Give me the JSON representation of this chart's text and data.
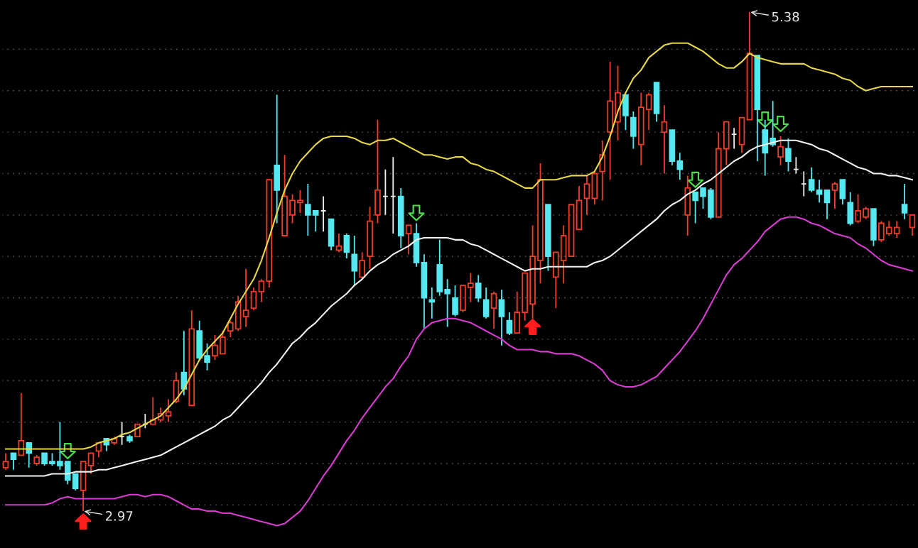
{
  "chart_data": {
    "type": "candlestick",
    "categories": [
      null,
      null,
      null,
      null,
      null,
      null,
      null,
      null,
      null,
      null,
      null,
      null,
      null,
      null,
      null,
      null,
      null,
      null,
      null,
      null,
      null,
      null,
      null,
      null,
      null,
      null,
      null,
      null,
      null,
      null,
      null,
      null,
      null,
      null,
      null,
      null,
      null,
      null,
      null,
      null,
      null,
      null,
      null,
      null,
      null,
      null,
      null,
      null,
      null,
      null,
      null,
      null,
      null,
      null,
      null,
      null,
      null,
      null,
      null,
      null,
      null,
      null,
      null,
      null,
      null,
      null,
      null,
      null,
      null,
      null,
      null,
      null,
      null,
      null,
      null,
      null,
      null,
      null,
      null,
      null,
      null,
      null,
      null,
      null,
      null,
      null,
      null,
      null,
      null,
      null,
      null,
      null,
      null,
      null,
      null,
      null,
      null,
      null,
      null,
      null,
      null,
      null,
      null,
      null,
      null,
      null,
      null,
      null,
      null,
      null,
      null,
      null,
      null,
      null,
      null,
      null,
      null,
      null
    ],
    "ohlc": [
      [
        3.18,
        3.25,
        3.17,
        3.21
      ],
      [
        3.25,
        3.25,
        3.17,
        3.22
      ],
      [
        3.24,
        3.54,
        3.24,
        3.31
      ],
      [
        3.3,
        3.3,
        3.18,
        3.25
      ],
      [
        3.2,
        3.24,
        3.19,
        3.23
      ],
      [
        3.25,
        3.25,
        3.19,
        3.2
      ],
      [
        3.21,
        3.25,
        3.19,
        3.2
      ],
      [
        3.21,
        3.4,
        3.17,
        3.19
      ],
      [
        3.21,
        3.21,
        3.1,
        3.12
      ],
      [
        3.15,
        3.15,
        3.07,
        3.08
      ],
      [
        3.07,
        3.21,
        2.97,
        3.21
      ],
      [
        3.19,
        3.25,
        3.15,
        3.25
      ],
      [
        3.26,
        3.3,
        3.23,
        3.3
      ],
      [
        3.32,
        3.32,
        3.26,
        3.29
      ],
      [
        3.3,
        3.33,
        3.29,
        3.32
      ],
      [
        3.33,
        3.4,
        3.29,
        3.33
      ],
      [
        3.33,
        3.34,
        3.3,
        3.31
      ],
      [
        3.33,
        3.39,
        3.33,
        3.39
      ],
      [
        3.39,
        3.44,
        3.37,
        3.39
      ],
      [
        3.39,
        3.52,
        3.39,
        3.41
      ],
      [
        3.41,
        3.47,
        3.4,
        3.44
      ],
      [
        3.43,
        3.51,
        3.4,
        3.45
      ],
      [
        3.5,
        3.64,
        3.49,
        3.6
      ],
      [
        3.64,
        3.84,
        3.53,
        3.56
      ],
      [
        3.48,
        3.94,
        3.48,
        3.85
      ],
      [
        3.84,
        3.89,
        3.7,
        3.71
      ],
      [
        3.72,
        3.78,
        3.65,
        3.69
      ],
      [
        3.72,
        3.82,
        3.7,
        3.77
      ],
      [
        3.73,
        3.84,
        3.73,
        3.81
      ],
      [
        3.84,
        3.89,
        3.81,
        3.88
      ],
      [
        3.85,
        4.01,
        3.84,
        3.98
      ],
      [
        3.91,
        4.14,
        3.86,
        3.94
      ],
      [
        3.95,
        4.05,
        3.94,
        4.03
      ],
      [
        4.03,
        4.09,
        3.98,
        4.08
      ],
      [
        4.08,
        4.57,
        4.05,
        4.57
      ],
      [
        4.64,
        4.98,
        4.36,
        4.52
      ],
      [
        4.3,
        4.69,
        4.3,
        4.49
      ],
      [
        4.4,
        4.5,
        4.36,
        4.47
      ],
      [
        4.46,
        4.52,
        4.41,
        4.47
      ],
      [
        4.45,
        4.55,
        4.3,
        4.4
      ],
      [
        4.42,
        4.42,
        4.32,
        4.4
      ],
      [
        4.42,
        4.49,
        4.32,
        4.42
      ],
      [
        4.38,
        4.38,
        4.23,
        4.25
      ],
      [
        4.23,
        4.31,
        4.22,
        4.25
      ],
      [
        4.3,
        4.31,
        4.19,
        4.22
      ],
      [
        4.21,
        4.3,
        4.06,
        4.13
      ],
      [
        4.1,
        4.22,
        4.09,
        4.18
      ],
      [
        4.2,
        4.44,
        4.14,
        4.37
      ],
      [
        4.4,
        4.86,
        4.36,
        4.52
      ],
      [
        4.49,
        4.62,
        4.4,
        4.49
      ],
      [
        4.49,
        4.68,
        4.31,
        4.49
      ],
      [
        4.49,
        4.53,
        4.24,
        4.3
      ],
      [
        4.31,
        4.35,
        4.21,
        4.35
      ],
      [
        4.31,
        4.36,
        4.15,
        4.17
      ],
      [
        4.17,
        4.21,
        3.85,
        4.0
      ],
      [
        3.99,
        4.05,
        3.9,
        3.98
      ],
      [
        4.16,
        4.28,
        4.01,
        4.03
      ],
      [
        4.04,
        4.09,
        3.86,
        4.02
      ],
      [
        4.0,
        4.06,
        3.91,
        3.92
      ],
      [
        3.94,
        4.06,
        3.93,
        4.06
      ],
      [
        4.05,
        4.12,
        3.98,
        4.07
      ],
      [
        4.07,
        4.11,
        3.98,
        4.0
      ],
      [
        3.99,
        4.05,
        3.9,
        3.91
      ],
      [
        3.95,
        4.03,
        3.85,
        4.02
      ],
      [
        3.99,
        4.04,
        3.77,
        3.91
      ],
      [
        3.89,
        3.93,
        3.82,
        3.83
      ],
      [
        3.83,
        4.03,
        3.83,
        3.93
      ],
      [
        3.93,
        4.12,
        3.89,
        4.12
      ],
      [
        3.97,
        4.35,
        3.9,
        4.2
      ],
      [
        4.18,
        4.65,
        4.07,
        4.57
      ],
      [
        4.45,
        4.45,
        4.13,
        4.2
      ],
      [
        4.1,
        4.22,
        3.95,
        4.22
      ],
      [
        4.18,
        4.35,
        4.07,
        4.3
      ],
      [
        4.2,
        4.45,
        4.2,
        4.45
      ],
      [
        4.33,
        4.54,
        4.33,
        4.47
      ],
      [
        4.48,
        4.59,
        4.4,
        4.55
      ],
      [
        4.48,
        4.61,
        4.45,
        4.6
      ],
      [
        4.61,
        4.76,
        4.47,
        4.69
      ],
      [
        4.8,
        5.14,
        4.57,
        4.95
      ],
      [
        4.85,
        5.12,
        4.76,
        4.99
      ],
      [
        4.98,
        4.98,
        4.81,
        4.88
      ],
      [
        4.87,
        4.9,
        4.72,
        4.78
      ],
      [
        4.74,
        4.99,
        4.64,
        4.92
      ],
      [
        4.91,
        4.99,
        4.81,
        4.98
      ],
      [
        5.04,
        5.04,
        4.85,
        4.89
      ],
      [
        4.8,
        4.93,
        4.6,
        4.85
      ],
      [
        4.81,
        4.81,
        4.64,
        4.66
      ],
      [
        4.66,
        4.7,
        4.57,
        4.62
      ],
      [
        4.4,
        4.59,
        4.3,
        4.53
      ],
      [
        4.51,
        4.51,
        4.36,
        4.47
      ],
      [
        4.53,
        4.53,
        4.43,
        4.49
      ],
      [
        4.52,
        4.53,
        4.38,
        4.39
      ],
      [
        4.39,
        4.8,
        4.39,
        4.72
      ],
      [
        4.72,
        4.85,
        4.64,
        4.85
      ],
      [
        4.79,
        4.82,
        4.72,
        4.79
      ],
      [
        4.74,
        4.87,
        4.7,
        4.87
      ],
      [
        4.86,
        5.38,
        4.86,
        5.18
      ],
      [
        5.17,
        5.17,
        4.66,
        4.91
      ],
      [
        4.81,
        4.86,
        4.59,
        4.7
      ],
      [
        4.77,
        4.95,
        4.73,
        4.74
      ],
      [
        4.68,
        4.78,
        4.64,
        4.73
      ],
      [
        4.72,
        4.77,
        4.61,
        4.66
      ],
      [
        4.62,
        4.68,
        4.6,
        4.62
      ],
      [
        4.55,
        4.61,
        4.49,
        4.55
      ],
      [
        4.57,
        4.63,
        4.51,
        4.52
      ],
      [
        4.52,
        4.57,
        4.46,
        4.5
      ],
      [
        4.52,
        4.52,
        4.38,
        4.46
      ],
      [
        4.52,
        4.56,
        4.43,
        4.55
      ],
      [
        4.57,
        4.57,
        4.45,
        4.48
      ],
      [
        4.46,
        4.51,
        4.35,
        4.36
      ],
      [
        4.37,
        4.5,
        4.36,
        4.42
      ],
      [
        4.39,
        4.44,
        4.38,
        4.43
      ],
      [
        4.43,
        4.43,
        4.25,
        4.28
      ],
      [
        4.28,
        4.37,
        4.27,
        4.36
      ],
      [
        4.31,
        4.37,
        4.3,
        4.34
      ],
      [
        4.31,
        4.37,
        4.29,
        4.34
      ],
      [
        4.45,
        4.55,
        4.38,
        4.41
      ],
      [
        4.34,
        4.4,
        4.3,
        4.4
      ]
    ],
    "colors": [
      "#f23c28",
      "#55e8f0",
      "#f23c28",
      "#55e8f0",
      "#f23c28",
      "#55e8f0",
      "#55e8f0",
      "#55e8f0",
      "#55e8f0",
      "#55e8f0",
      "#f23c28",
      "#f23c28",
      "#f23c28",
      "#55e8f0",
      "#f23c28",
      "#f0f0f0",
      "#55e8f0",
      "#f23c28",
      "#f0f0f0",
      "#f23c28",
      "#f23c28",
      "#f23c28",
      "#f23c28",
      "#55e8f0",
      "#f23c28",
      "#55e8f0",
      "#55e8f0",
      "#f23c28",
      "#f23c28",
      "#f23c28",
      "#f23c28",
      "#f23c28",
      "#f23c28",
      "#f23c28",
      "#f23c28",
      "#55e8f0",
      "#f23c28",
      "#f23c28",
      "#f23c28",
      "#55e8f0",
      "#55e8f0",
      "#f0f0f0",
      "#55e8f0",
      "#f23c28",
      "#55e8f0",
      "#55e8f0",
      "#f23c28",
      "#f23c28",
      "#f23c28",
      "#f0f0f0",
      "#f0f0f0",
      "#55e8f0",
      "#f23c28",
      "#55e8f0",
      "#55e8f0",
      "#55e8f0",
      "#55e8f0",
      "#55e8f0",
      "#55e8f0",
      "#f23c28",
      "#f23c28",
      "#55e8f0",
      "#55e8f0",
      "#f23c28",
      "#55e8f0",
      "#55e8f0",
      "#f23c28",
      "#f23c28",
      "#f23c28",
      "#f23c28",
      "#55e8f0",
      "#f23c28",
      "#f23c28",
      "#f23c28",
      "#f23c28",
      "#f23c28",
      "#f23c28",
      "#f23c28",
      "#f23c28",
      "#f23c28",
      "#55e8f0",
      "#55e8f0",
      "#f23c28",
      "#f23c28",
      "#55e8f0",
      "#f23c28",
      "#55e8f0",
      "#55e8f0",
      "#f23c28",
      "#55e8f0",
      "#55e8f0",
      "#55e8f0",
      "#f23c28",
      "#f23c28",
      "#f0f0f0",
      "#f23c28",
      "#f23c28",
      "#55e8f0",
      "#55e8f0",
      "#55e8f0",
      "#f23c28",
      "#55e8f0",
      "#f0f0f0",
      "#f0f0f0",
      "#55e8f0",
      "#55e8f0",
      "#55e8f0",
      "#f23c28",
      "#55e8f0",
      "#55e8f0",
      "#f23c28",
      "#f23c28",
      "#55e8f0",
      "#f23c28",
      "#f23c28",
      "#f23c28",
      "#55e8f0",
      "#f23c28"
    ],
    "ylim": [
      2.8,
      5.43
    ],
    "yticks": [
      {
        "value": 3.0,
        "label": null
      },
      {
        "value": 3.2,
        "label": null
      },
      {
        "value": 3.4,
        "label": null
      },
      {
        "value": 3.6,
        "label": null
      },
      {
        "value": 3.8,
        "label": null
      },
      {
        "value": 4.0,
        "label": null
      },
      {
        "value": 4.2,
        "label": null
      },
      {
        "value": 4.4,
        "label": null
      },
      {
        "value": 4.6,
        "label": null
      },
      {
        "value": 4.8,
        "label": null
      },
      {
        "value": 5.0,
        "label": null
      },
      {
        "value": 5.2,
        "label": null
      }
    ],
    "grid": "y",
    "tick_labels": false,
    "series": [
      {
        "type": "line",
        "color": "#e8d848",
        "values": [
          3.27,
          3.27,
          3.27,
          3.27,
          3.27,
          3.27,
          3.27,
          3.27,
          3.27,
          3.27,
          3.27,
          3.28,
          3.3,
          3.31,
          3.32,
          3.34,
          3.35,
          3.37,
          3.39,
          3.41,
          3.43,
          3.47,
          3.51,
          3.56,
          3.63,
          3.7,
          3.75,
          3.79,
          3.83,
          3.9,
          3.97,
          4.03,
          4.09,
          4.18,
          4.29,
          4.41,
          4.52,
          4.6,
          4.66,
          4.7,
          4.74,
          4.77,
          4.78,
          4.78,
          4.78,
          4.77,
          4.75,
          4.74,
          4.76,
          4.76,
          4.77,
          4.75,
          4.73,
          4.71,
          4.69,
          4.69,
          4.68,
          4.67,
          4.68,
          4.68,
          4.65,
          4.64,
          4.62,
          4.61,
          4.59,
          4.57,
          4.55,
          4.53,
          4.53,
          4.57,
          4.57,
          4.57,
          4.58,
          4.59,
          4.59,
          4.59,
          4.61,
          4.68,
          4.78,
          4.9,
          4.99,
          5.06,
          5.1,
          5.16,
          5.19,
          5.22,
          5.23,
          5.23,
          5.23,
          5.21,
          5.19,
          5.16,
          5.13,
          5.11,
          5.11,
          5.14,
          5.18,
          5.16,
          5.15,
          5.14,
          5.13,
          5.13,
          5.13,
          5.13,
          5.11,
          5.1,
          5.09,
          5.08,
          5.06,
          5.05,
          5.02,
          5.0,
          5.01,
          5.02,
          5.02,
          5.02,
          5.02,
          5.02
        ]
      },
      {
        "type": "line",
        "color": "#f2f2f2",
        "values": [
          3.14,
          3.14,
          3.14,
          3.14,
          3.14,
          3.14,
          3.15,
          3.15,
          3.15,
          3.16,
          3.16,
          3.16,
          3.17,
          3.17,
          3.18,
          3.19,
          3.2,
          3.21,
          3.22,
          3.23,
          3.24,
          3.26,
          3.28,
          3.3,
          3.32,
          3.34,
          3.36,
          3.38,
          3.41,
          3.43,
          3.47,
          3.51,
          3.55,
          3.59,
          3.64,
          3.68,
          3.73,
          3.78,
          3.81,
          3.85,
          3.88,
          3.92,
          3.96,
          3.99,
          4.02,
          4.06,
          4.09,
          4.13,
          4.16,
          4.18,
          4.21,
          4.23,
          4.25,
          4.28,
          4.29,
          4.29,
          4.29,
          4.29,
          4.28,
          4.28,
          4.26,
          4.25,
          4.23,
          4.21,
          4.19,
          4.17,
          4.15,
          4.13,
          4.14,
          4.14,
          4.15,
          4.15,
          4.15,
          4.15,
          4.15,
          4.15,
          4.17,
          4.18,
          4.2,
          4.23,
          4.26,
          4.29,
          4.32,
          4.35,
          4.38,
          4.42,
          4.45,
          4.47,
          4.5,
          4.52,
          4.55,
          4.57,
          4.6,
          4.63,
          4.66,
          4.68,
          4.71,
          4.73,
          4.74,
          4.75,
          4.76,
          4.76,
          4.76,
          4.75,
          4.74,
          4.72,
          4.71,
          4.69,
          4.67,
          4.65,
          4.63,
          4.62,
          4.6,
          4.6,
          4.59,
          4.59,
          4.58,
          4.57
        ]
      },
      {
        "type": "line",
        "color": "#d83cd0",
        "values": [
          3.0,
          3.0,
          3.0,
          3.0,
          3.0,
          3.0,
          3.01,
          3.03,
          3.04,
          3.03,
          3.03,
          3.03,
          3.03,
          3.03,
          3.03,
          3.04,
          3.05,
          3.05,
          3.04,
          3.05,
          3.05,
          3.04,
          3.02,
          3.0,
          2.98,
          2.98,
          2.97,
          2.97,
          2.96,
          2.96,
          2.95,
          2.94,
          2.93,
          2.92,
          2.91,
          2.9,
          2.91,
          2.94,
          2.97,
          3.02,
          3.08,
          3.14,
          3.19,
          3.25,
          3.31,
          3.36,
          3.42,
          3.47,
          3.52,
          3.57,
          3.61,
          3.67,
          3.72,
          3.8,
          3.85,
          3.88,
          3.89,
          3.9,
          3.9,
          3.89,
          3.88,
          3.86,
          3.84,
          3.82,
          3.8,
          3.77,
          3.75,
          3.75,
          3.75,
          3.74,
          3.74,
          3.73,
          3.73,
          3.73,
          3.72,
          3.7,
          3.68,
          3.65,
          3.6,
          3.58,
          3.57,
          3.57,
          3.58,
          3.6,
          3.62,
          3.66,
          3.7,
          3.74,
          3.79,
          3.84,
          3.9,
          3.97,
          4.04,
          4.11,
          4.16,
          4.19,
          4.23,
          4.27,
          4.32,
          4.35,
          4.38,
          4.39,
          4.39,
          4.38,
          4.36,
          4.35,
          4.33,
          4.31,
          4.3,
          4.29,
          4.26,
          4.24,
          4.21,
          4.18,
          4.16,
          4.15,
          4.14,
          4.13
        ]
      },
      {
        "type": "scatter",
        "color": "#ff1e1e",
        "marker": "triangle",
        "values": [
          null,
          null,
          null,
          null,
          null,
          null,
          null,
          null,
          null,
          null,
          2.92,
          null,
          null,
          null,
          null,
          null,
          null,
          null,
          null,
          null,
          null,
          null,
          null,
          null,
          null,
          null,
          null,
          null,
          null,
          null,
          null,
          null,
          null,
          null,
          null,
          null,
          null,
          null,
          null,
          null,
          null,
          null,
          null,
          null,
          null,
          null,
          null,
          null,
          null,
          null,
          null,
          null,
          null,
          null,
          null,
          null,
          null,
          null,
          null,
          null,
          null,
          null,
          null,
          null,
          null,
          null,
          null,
          null,
          3.86,
          null,
          null,
          null,
          null,
          null,
          null,
          null,
          null,
          null,
          null,
          null,
          null,
          null,
          null,
          null,
          null,
          null,
          null,
          null,
          null,
          null,
          null,
          null,
          null,
          null,
          null,
          null,
          null,
          null,
          null,
          null,
          null,
          null,
          null,
          null,
          null,
          null,
          null,
          null,
          null,
          null,
          null,
          null,
          null,
          null,
          null,
          null,
          null,
          null
        ]
      },
      {
        "type": "scatter",
        "color": "#4cdc4c",
        "marker": "triangle",
        "values": [
          null,
          null,
          null,
          null,
          null,
          null,
          null,
          null,
          3.26,
          null,
          null,
          null,
          null,
          null,
          null,
          null,
          null,
          null,
          null,
          null,
          null,
          null,
          null,
          null,
          null,
          null,
          null,
          null,
          null,
          null,
          null,
          null,
          null,
          null,
          null,
          null,
          null,
          null,
          null,
          null,
          null,
          null,
          null,
          null,
          null,
          null,
          null,
          null,
          null,
          null,
          null,
          null,
          null,
          4.41,
          null,
          null,
          null,
          null,
          null,
          null,
          null,
          null,
          null,
          null,
          null,
          null,
          null,
          null,
          null,
          null,
          null,
          null,
          null,
          null,
          null,
          null,
          null,
          null,
          null,
          null,
          null,
          null,
          null,
          null,
          null,
          null,
          null,
          null,
          null,
          4.57,
          null,
          null,
          null,
          null,
          null,
          null,
          null,
          null,
          4.86,
          null,
          4.84,
          null,
          null,
          null,
          null,
          null,
          null,
          null,
          null,
          null,
          null,
          null,
          null,
          null,
          null,
          null,
          null,
          null
        ]
      }
    ],
    "annotations": [
      "2.97",
      "5.38"
    ]
  }
}
